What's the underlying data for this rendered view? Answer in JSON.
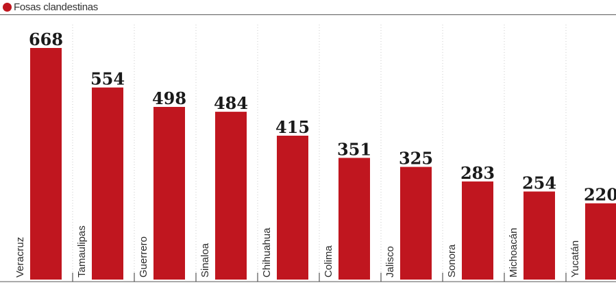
{
  "legend": {
    "label": "Fosas clandestinas",
    "color": "#c0161f"
  },
  "chart_data": {
    "type": "bar",
    "categories": [
      "Veracruz",
      "Tamaulipas",
      "Guerrero",
      "Sinaloa",
      "Chihuahua",
      "Colima",
      "Jalisco",
      "Sonora",
      "Michoacán",
      "Yucatán"
    ],
    "series": [
      {
        "name": "Fosas clandestinas",
        "values": [
          668,
          554,
          498,
          484,
          415,
          351,
          325,
          283,
          254,
          220
        ]
      }
    ],
    "ylim": [
      0,
      668
    ],
    "bar_color": "#c0161f",
    "grid": "vertical dotted separators",
    "legend_position": "top-left"
  }
}
